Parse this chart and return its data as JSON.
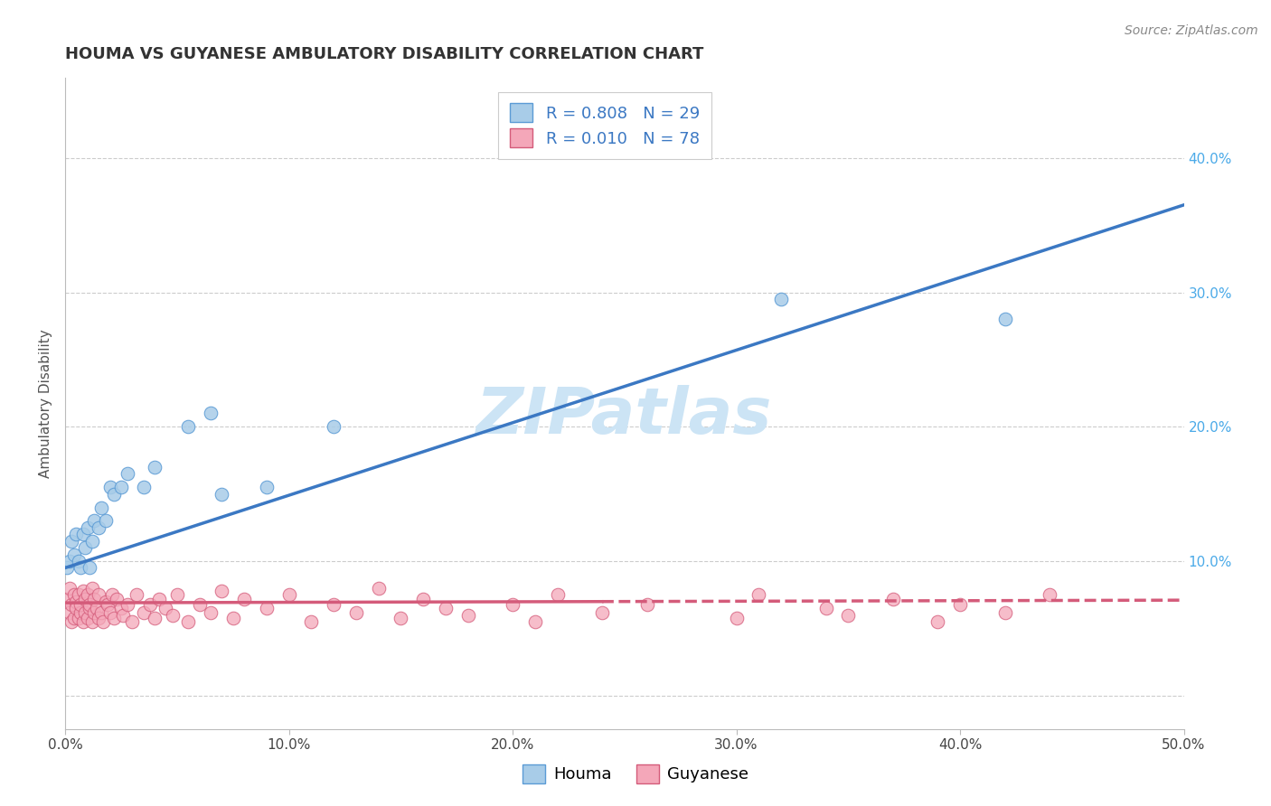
{
  "title": "HOUMA VS GUYANESE AMBULATORY DISABILITY CORRELATION CHART",
  "source_text": "Source: ZipAtlas.com",
  "ylabel": "Ambulatory Disability",
  "watermark": "ZIPatlas",
  "xlim": [
    0.0,
    0.5
  ],
  "ylim": [
    -0.025,
    0.46
  ],
  "xtick_labels": [
    "0.0%",
    "10.0%",
    "20.0%",
    "30.0%",
    "40.0%",
    "50.0%"
  ],
  "xtick_vals": [
    0.0,
    0.1,
    0.2,
    0.3,
    0.4,
    0.5
  ],
  "ytick_labels_right": [
    "",
    "10.0%",
    "20.0%",
    "30.0%",
    "40.0%"
  ],
  "ytick_vals_right": [
    0.0,
    0.1,
    0.2,
    0.3,
    0.4
  ],
  "houma_color": "#a8cce8",
  "houma_edge": "#5b9bd5",
  "guyanese_color": "#f4a7b9",
  "guyanese_edge": "#d45b7a",
  "houma_line_color": "#3b78c3",
  "guyanese_line_color": "#d45b7a",
  "legend_R_color": "#3b78c3",
  "houma_R": 0.808,
  "houma_N": 29,
  "guyanese_R": 0.01,
  "guyanese_N": 78,
  "houma_x": [
    0.001,
    0.002,
    0.003,
    0.004,
    0.005,
    0.006,
    0.007,
    0.008,
    0.009,
    0.01,
    0.011,
    0.012,
    0.013,
    0.015,
    0.016,
    0.018,
    0.02,
    0.022,
    0.025,
    0.028,
    0.035,
    0.04,
    0.055,
    0.065,
    0.07,
    0.09,
    0.12,
    0.32,
    0.42
  ],
  "houma_y": [
    0.095,
    0.1,
    0.115,
    0.105,
    0.12,
    0.1,
    0.095,
    0.12,
    0.11,
    0.125,
    0.095,
    0.115,
    0.13,
    0.125,
    0.14,
    0.13,
    0.155,
    0.15,
    0.155,
    0.165,
    0.155,
    0.17,
    0.2,
    0.21,
    0.15,
    0.155,
    0.2,
    0.295,
    0.28
  ],
  "guyanese_x": [
    0.001,
    0.002,
    0.002,
    0.003,
    0.003,
    0.004,
    0.004,
    0.005,
    0.005,
    0.006,
    0.006,
    0.007,
    0.007,
    0.008,
    0.008,
    0.009,
    0.009,
    0.01,
    0.01,
    0.011,
    0.011,
    0.012,
    0.012,
    0.013,
    0.013,
    0.014,
    0.015,
    0.015,
    0.016,
    0.017,
    0.018,
    0.019,
    0.02,
    0.021,
    0.022,
    0.023,
    0.025,
    0.026,
    0.028,
    0.03,
    0.032,
    0.035,
    0.038,
    0.04,
    0.042,
    0.045,
    0.048,
    0.05,
    0.055,
    0.06,
    0.065,
    0.07,
    0.075,
    0.08,
    0.09,
    0.1,
    0.11,
    0.12,
    0.13,
    0.14,
    0.15,
    0.16,
    0.17,
    0.18,
    0.2,
    0.21,
    0.22,
    0.24,
    0.26,
    0.3,
    0.31,
    0.34,
    0.35,
    0.37,
    0.39,
    0.4,
    0.42,
    0.44
  ],
  "guyanese_y": [
    0.072,
    0.062,
    0.08,
    0.068,
    0.055,
    0.075,
    0.058,
    0.07,
    0.065,
    0.058,
    0.075,
    0.062,
    0.068,
    0.055,
    0.078,
    0.062,
    0.072,
    0.058,
    0.075,
    0.065,
    0.068,
    0.055,
    0.08,
    0.062,
    0.072,
    0.065,
    0.058,
    0.075,
    0.062,
    0.055,
    0.07,
    0.068,
    0.062,
    0.075,
    0.058,
    0.072,
    0.065,
    0.06,
    0.068,
    0.055,
    0.075,
    0.062,
    0.068,
    0.058,
    0.072,
    0.065,
    0.06,
    0.075,
    0.055,
    0.068,
    0.062,
    0.078,
    0.058,
    0.072,
    0.065,
    0.075,
    0.055,
    0.068,
    0.062,
    0.08,
    0.058,
    0.072,
    0.065,
    0.06,
    0.068,
    0.055,
    0.075,
    0.062,
    0.068,
    0.058,
    0.075,
    0.065,
    0.06,
    0.072,
    0.055,
    0.068,
    0.062,
    0.075
  ],
  "background_color": "#ffffff",
  "grid_color": "#cccccc",
  "title_fontsize": 13,
  "axis_label_fontsize": 11,
  "tick_fontsize": 11,
  "legend_fontsize": 13,
  "watermark_fontsize": 52,
  "watermark_color": "#cce4f5",
  "source_fontsize": 10,
  "houma_line_y0": 0.095,
  "houma_line_y1": 0.365,
  "guyanese_line_y0": 0.069,
  "guyanese_line_y1": 0.071
}
